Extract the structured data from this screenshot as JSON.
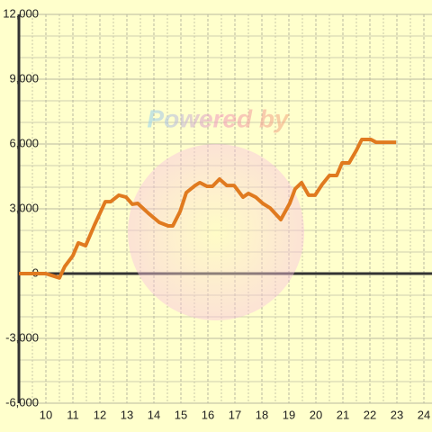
{
  "chart_data": {
    "type": "line",
    "annotation": "Powered by",
    "series": [
      {
        "color": "#e07a1f",
        "x": [
          9,
          10,
          10.2,
          10.5,
          10.7,
          11,
          11.2,
          11.47,
          11.8,
          12.2,
          12.4,
          12.7,
          12.97,
          13.2,
          13.4,
          13.8,
          14.2,
          14.53,
          14.7,
          14.97,
          15.2,
          15.53,
          15.7,
          15.97,
          16.17,
          16.43,
          16.7,
          16.97,
          17.3,
          17.5,
          17.77,
          18.03,
          18.3,
          18.7,
          19.03,
          19.23,
          19.47,
          19.73,
          19.97,
          20.23,
          20.5,
          20.77,
          20.97,
          21.23,
          21.5,
          21.7,
          22.03,
          22.23,
          22.97
        ],
        "values": [
          0,
          0,
          -80,
          -200,
          330,
          830,
          1420,
          1290,
          2250,
          3330,
          3330,
          3630,
          3540,
          3210,
          3250,
          2790,
          2370,
          2210,
          2210,
          2875,
          3750,
          4080,
          4210,
          4040,
          4040,
          4375,
          4080,
          4080,
          3540,
          3710,
          3540,
          3250,
          3040,
          2500,
          3250,
          3920,
          4210,
          3630,
          3630,
          4125,
          4540,
          4540,
          5125,
          5125,
          5710,
          6210,
          6210,
          6080,
          6080
        ]
      }
    ],
    "xlim": [
      9,
      24.3
    ],
    "ylim": [
      -6000,
      12000
    ],
    "xticks": [
      10,
      11,
      12,
      13,
      14,
      15,
      16,
      17,
      18,
      19,
      20,
      21,
      22,
      23,
      24
    ],
    "xminor_ticks": [
      9.5,
      10.5,
      11.5,
      12.5,
      13.5,
      14.5,
      15.5,
      16.5,
      17.5,
      18.5,
      19.5,
      20.5,
      21.5,
      22.5,
      23.5
    ],
    "yticks": [
      {
        "value": -6000,
        "label": "-6,000"
      },
      {
        "value": -3000,
        "label": "-3,000"
      },
      0,
      {
        "value": 3000,
        "label": "3,000"
      },
      {
        "value": 6000,
        "label": "6,000"
      },
      {
        "value": 9000,
        "label": "9,000"
      },
      {
        "value": 12000,
        "label": "12,000"
      }
    ],
    "yminor_ticks": [
      -5000,
      -4000,
      -2000,
      -1000,
      1000,
      2000,
      4000,
      5000,
      7000,
      8000,
      10000,
      11000
    ],
    "grid": true
  }
}
